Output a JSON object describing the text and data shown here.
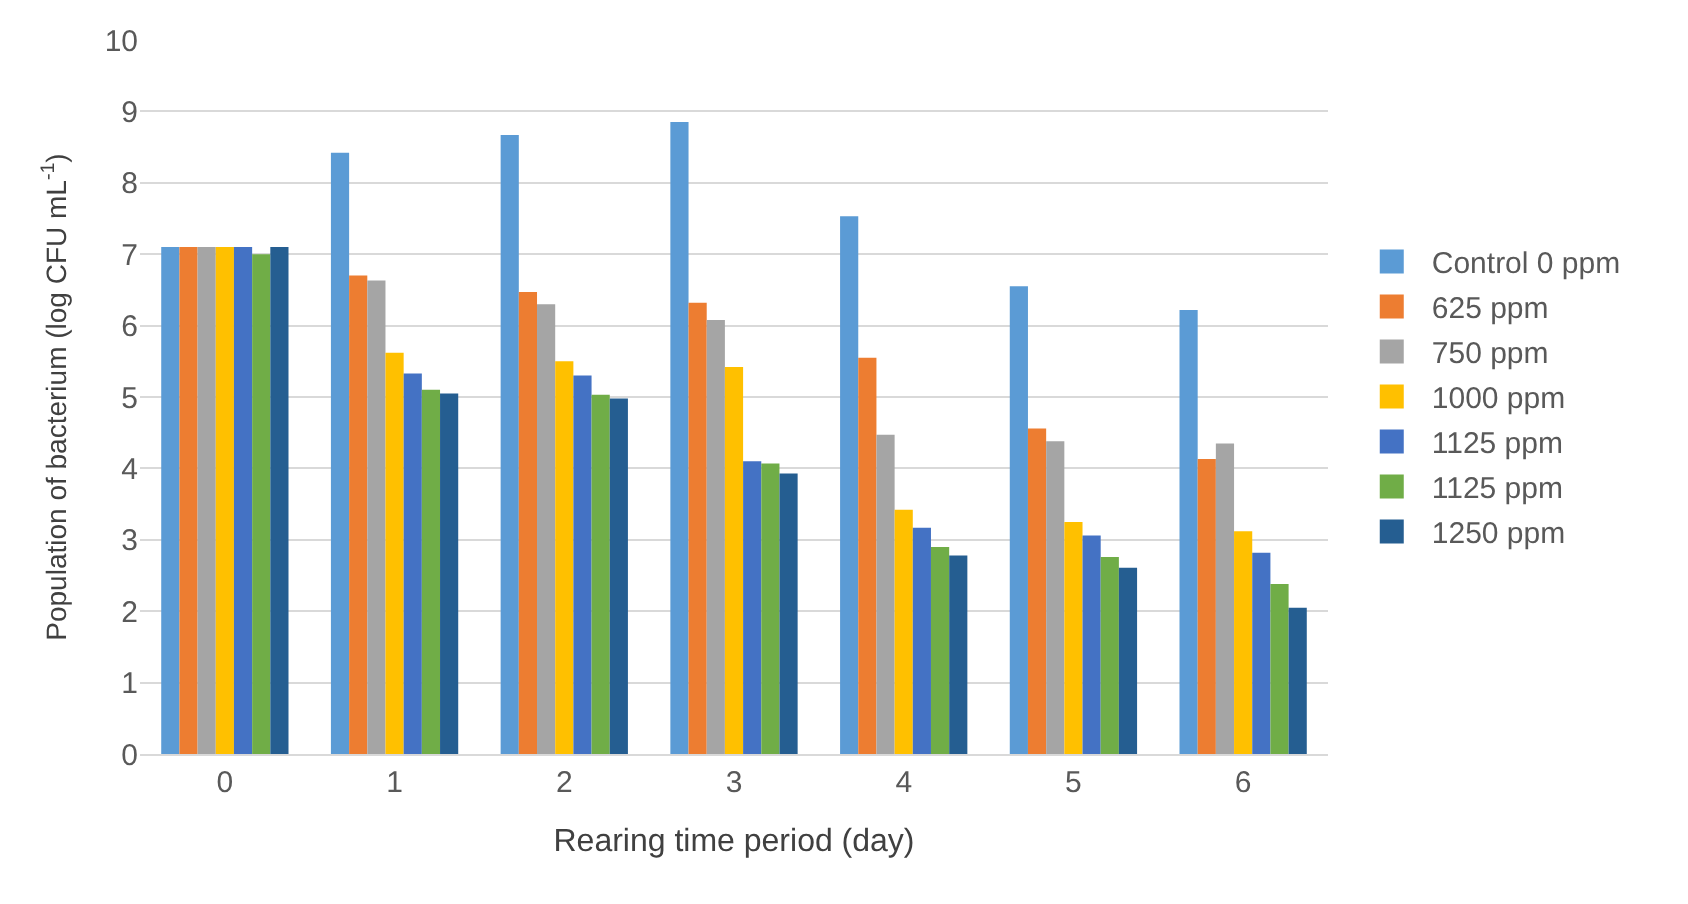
{
  "chart_data": {
    "type": "bar",
    "xlabel": "Rearing time period (day)",
    "ylabel": "Population of bacterium (log CFU mL$^{-1}$)",
    "categories": [
      "0",
      "1",
      "2",
      "3",
      "4",
      "5",
      "6"
    ],
    "series": [
      {
        "name": "Control 0 ppm",
        "color": "#5b9bd5",
        "values": [
          7.1,
          8.42,
          8.67,
          8.85,
          7.53,
          6.55,
          6.22
        ]
      },
      {
        "name": "625 ppm",
        "color": "#ed7d31",
        "values": [
          7.1,
          6.7,
          6.47,
          6.32,
          5.55,
          4.56,
          4.13
        ]
      },
      {
        "name": "750 ppm",
        "color": "#a5a5a5",
        "values": [
          7.1,
          6.63,
          6.3,
          6.08,
          4.47,
          4.38,
          4.35
        ]
      },
      {
        "name": "1000 ppm",
        "color": "#ffc000",
        "values": [
          7.1,
          5.62,
          5.5,
          5.42,
          3.42,
          3.25,
          3.12
        ]
      },
      {
        "name": "1125 ppm",
        "color": "#4472c4",
        "values": [
          7.1,
          5.33,
          5.3,
          4.1,
          3.17,
          3.06,
          2.82
        ]
      },
      {
        "name": "1125 ppm",
        "color": "#70ad47",
        "values": [
          7.0,
          5.1,
          5.03,
          4.07,
          2.9,
          2.76,
          2.38
        ]
      },
      {
        "name": "1250 ppm",
        "color": "#255e91",
        "values": [
          7.1,
          5.05,
          4.98,
          3.93,
          2.78,
          2.61,
          2.05
        ]
      }
    ],
    "ylim": [
      0,
      10
    ],
    "yticks": [
      0,
      1,
      2,
      3,
      4,
      5,
      6,
      7,
      8,
      9,
      10
    ],
    "grid": "y",
    "legend": "right"
  }
}
